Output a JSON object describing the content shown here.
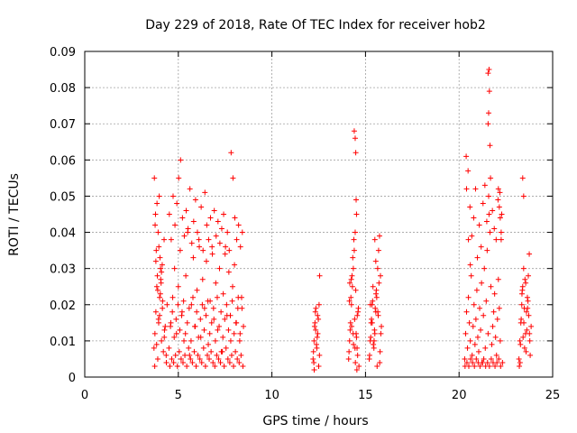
{
  "chart_data": {
    "type": "scatter",
    "title": "Day 229 of 2018, Rate Of TEC Index for receiver hob2",
    "xlabel": "GPS time / hours",
    "ylabel": "ROTI / TECUs",
    "xlim": [
      0,
      25
    ],
    "ylim": [
      0,
      0.09
    ],
    "xticks": [
      0,
      5,
      10,
      15,
      20,
      25
    ],
    "xtick_labels": [
      "0",
      "5",
      "10",
      "15",
      "20",
      "25"
    ],
    "yticks": [
      0,
      0.01,
      0.02,
      0.03,
      0.04,
      0.05,
      0.06,
      0.07,
      0.08,
      0.09
    ],
    "ytick_labels": [
      "0",
      "0.01",
      "0.02",
      "0.03",
      "0.04",
      "0.05",
      "0.06",
      "0.07",
      "0.08",
      "0.09"
    ],
    "grid": true,
    "marker": "+",
    "marker_color": "#ff0000",
    "series": [
      {
        "x": [
          3.7,
          3.75,
          3.8,
          3.85,
          3.9,
          3.95,
          4.0,
          4.05,
          4.1,
          4.2,
          4.3,
          4.4,
          3.72,
          3.78,
          3.82,
          3.88,
          3.92,
          3.98,
          4.02,
          4.08,
          4.15,
          4.25,
          4.35,
          3.74,
          3.84,
          3.94,
          4.04,
          4.14,
          4.24,
          3.76,
          3.86,
          3.96,
          4.06,
          4.16,
          4.26,
          4.36,
          3.8,
          3.9,
          4.0,
          4.1,
          4.5,
          4.6,
          4.7,
          4.8,
          4.9,
          5.0,
          5.1,
          5.2,
          5.3,
          5.4,
          5.5,
          5.6,
          5.7,
          5.8,
          5.9,
          6.0,
          6.1,
          6.2,
          6.3,
          6.4,
          6.5,
          6.6,
          6.7,
          6.8,
          6.9,
          7.0,
          7.1,
          7.2,
          7.3,
          7.4,
          7.5,
          7.6,
          7.7,
          7.8,
          7.9,
          8.0,
          8.1,
          8.2,
          8.3,
          8.4,
          4.55,
          4.65,
          4.75,
          4.85,
          4.95,
          5.05,
          5.15,
          5.25,
          5.35,
          5.45,
          5.55,
          5.65,
          5.75,
          5.85,
          5.95,
          6.05,
          6.15,
          6.25,
          6.35,
          6.45,
          6.55,
          6.65,
          6.75,
          6.85,
          6.95,
          7.05,
          7.15,
          7.25,
          7.35,
          7.45,
          7.55,
          7.65,
          7.75,
          7.85,
          7.95,
          8.05,
          8.15,
          8.25,
          8.35,
          8.45,
          4.52,
          4.62,
          4.72,
          4.82,
          4.92,
          5.02,
          5.12,
          5.22,
          5.32,
          5.42,
          5.52,
          5.62,
          5.72,
          5.82,
          5.92,
          6.02,
          6.12,
          6.22,
          6.32,
          6.42,
          6.52,
          6.62,
          6.72,
          6.82,
          6.92,
          7.02,
          7.12,
          7.22,
          7.32,
          7.42,
          7.52,
          7.62,
          7.72,
          7.82,
          7.92,
          8.02,
          8.12,
          8.22,
          8.32,
          8.42,
          4.58,
          4.68,
          4.78,
          4.88,
          4.98,
          5.08,
          5.18,
          5.28,
          5.38,
          5.48,
          5.58,
          5.68,
          5.78,
          5.88,
          5.98,
          6.08,
          6.18,
          6.28,
          6.38,
          6.48,
          6.58,
          6.68,
          6.78,
          6.88,
          6.98,
          7.08,
          7.18,
          7.28,
          7.38,
          7.48,
          7.58,
          7.68,
          7.78,
          7.88,
          7.98,
          8.08,
          8.18,
          8.28,
          8.38,
          8.48,
          12.2,
          12.25,
          12.3,
          12.35,
          12.4,
          12.45,
          12.5,
          12.55,
          12.22,
          12.28,
          12.32,
          12.38,
          12.42,
          12.48,
          12.52,
          12.24,
          12.34,
          12.44,
          12.54,
          12.26,
          14.1,
          14.15,
          14.2,
          14.25,
          14.3,
          14.35,
          14.4,
          14.45,
          14.5,
          14.55,
          14.6,
          14.65,
          14.12,
          14.18,
          14.22,
          14.28,
          14.32,
          14.38,
          14.42,
          14.48,
          14.52,
          14.58,
          14.62,
          14.16,
          14.26,
          14.36,
          14.46,
          14.56,
          14.14,
          14.24,
          14.34,
          14.44,
          14.54,
          14.4,
          14.45,
          14.48,
          14.5,
          14.52,
          15.2,
          15.25,
          15.3,
          15.35,
          15.4,
          15.45,
          15.5,
          15.55,
          15.6,
          15.65,
          15.7,
          15.75,
          15.8,
          15.85,
          15.22,
          15.28,
          15.32,
          15.38,
          15.42,
          15.48,
          15.52,
          15.58,
          15.62,
          15.68,
          15.72,
          15.78,
          15.82,
          15.26,
          15.36,
          15.46,
          15.56,
          15.66,
          15.76,
          15.5,
          15.55,
          20.3,
          20.35,
          20.4,
          20.45,
          20.5,
          20.55,
          20.6,
          20.65,
          20.7,
          20.75,
          20.8,
          20.85,
          20.9,
          20.95,
          21.0,
          21.05,
          21.1,
          21.15,
          21.2,
          21.25,
          21.3,
          21.35,
          21.4,
          21.45,
          21.5,
          21.55,
          21.6,
          21.65,
          21.7,
          21.75,
          21.8,
          21.85,
          21.9,
          21.95,
          22.0,
          22.05,
          22.1,
          22.15,
          22.2,
          22.25,
          20.32,
          20.42,
          20.52,
          20.62,
          20.72,
          20.82,
          20.92,
          21.02,
          21.12,
          21.22,
          21.32,
          21.42,
          21.52,
          21.62,
          21.72,
          21.82,
          21.92,
          22.02,
          22.12,
          22.22,
          22.32,
          20.38,
          20.48,
          20.58,
          20.68,
          20.78,
          20.88,
          20.98,
          21.08,
          21.18,
          21.28,
          21.38,
          21.48,
          21.58,
          21.68,
          21.78,
          21.88,
          21.98,
          22.08,
          22.18,
          22.28,
          20.4,
          20.5,
          20.6,
          21.55,
          21.6,
          21.62,
          21.58,
          21.55,
          21.65,
          22.1,
          22.15,
          22.2,
          22.25,
          23.2,
          23.25,
          23.3,
          23.35,
          23.4,
          23.45,
          23.5,
          23.55,
          23.6,
          23.65,
          23.7,
          23.75,
          23.8,
          23.85,
          23.22,
          23.28,
          23.32,
          23.38,
          23.42,
          23.48,
          23.52,
          23.58,
          23.62,
          23.68,
          23.72,
          23.78,
          23.26,
          23.36,
          23.46,
          23.56,
          23.66,
          23.76,
          23.4,
          23.45
        ],
        "y": [
          0.008,
          0.012,
          0.018,
          0.025,
          0.005,
          0.015,
          0.022,
          0.03,
          0.01,
          0.007,
          0.014,
          0.02,
          0.055,
          0.045,
          0.035,
          0.028,
          0.04,
          0.05,
          0.033,
          0.026,
          0.019,
          0.011,
          0.006,
          0.003,
          0.009,
          0.016,
          0.023,
          0.031,
          0.038,
          0.042,
          0.048,
          0.036,
          0.027,
          0.021,
          0.013,
          0.004,
          0.032,
          0.024,
          0.017,
          0.029,
          0.008,
          0.015,
          0.022,
          0.03,
          0.012,
          0.025,
          0.035,
          0.018,
          0.01,
          0.028,
          0.04,
          0.006,
          0.02,
          0.033,
          0.014,
          0.024,
          0.038,
          0.011,
          0.027,
          0.019,
          0.032,
          0.009,
          0.021,
          0.036,
          0.016,
          0.026,
          0.013,
          0.03,
          0.007,
          0.023,
          0.034,
          0.017,
          0.029,
          0.01,
          0.025,
          0.031,
          0.015,
          0.022,
          0.012,
          0.019,
          0.003,
          0.005,
          0.004,
          0.006,
          0.003,
          0.007,
          0.005,
          0.004,
          0.006,
          0.003,
          0.008,
          0.005,
          0.004,
          0.007,
          0.003,
          0.006,
          0.005,
          0.004,
          0.008,
          0.003,
          0.006,
          0.005,
          0.007,
          0.004,
          0.003,
          0.006,
          0.005,
          0.004,
          0.007,
          0.003,
          0.008,
          0.005,
          0.004,
          0.006,
          0.003,
          0.007,
          0.005,
          0.004,
          0.006,
          0.003,
          0.045,
          0.038,
          0.05,
          0.042,
          0.048,
          0.055,
          0.06,
          0.044,
          0.039,
          0.046,
          0.041,
          0.052,
          0.037,
          0.043,
          0.049,
          0.04,
          0.036,
          0.047,
          0.035,
          0.051,
          0.042,
          0.038,
          0.044,
          0.034,
          0.046,
          0.039,
          0.043,
          0.037,
          0.041,
          0.045,
          0.036,
          0.04,
          0.035,
          0.062,
          0.055,
          0.044,
          0.038,
          0.042,
          0.036,
          0.04,
          0.014,
          0.018,
          0.011,
          0.016,
          0.02,
          0.013,
          0.017,
          0.021,
          0.012,
          0.015,
          0.019,
          0.01,
          0.022,
          0.014,
          0.018,
          0.011,
          0.016,
          0.02,
          0.013,
          0.017,
          0.021,
          0.012,
          0.015,
          0.019,
          0.01,
          0.022,
          0.014,
          0.018,
          0.011,
          0.016,
          0.02,
          0.013,
          0.017,
          0.021,
          0.012,
          0.015,
          0.019,
          0.01,
          0.022,
          0.014,
          0.005,
          0.01,
          0.015,
          0.019,
          0.008,
          0.012,
          0.003,
          0.028,
          0.007,
          0.014,
          0.018,
          0.009,
          0.011,
          0.016,
          0.02,
          0.004,
          0.013,
          0.017,
          0.006,
          0.002,
          0.005,
          0.01,
          0.015,
          0.02,
          0.025,
          0.03,
          0.035,
          0.04,
          0.012,
          0.008,
          0.018,
          0.003,
          0.007,
          0.013,
          0.022,
          0.028,
          0.033,
          0.038,
          0.016,
          0.024,
          0.011,
          0.006,
          0.019,
          0.026,
          0.014,
          0.009,
          0.004,
          0.017,
          0.021,
          0.027,
          0.012,
          0.008,
          0.002,
          0.068,
          0.066,
          0.062,
          0.049,
          0.045,
          0.005,
          0.01,
          0.015,
          0.02,
          0.025,
          0.008,
          0.012,
          0.018,
          0.022,
          0.03,
          0.035,
          0.039,
          0.028,
          0.014,
          0.006,
          0.011,
          0.016,
          0.021,
          0.009,
          0.013,
          0.019,
          0.024,
          0.003,
          0.017,
          0.026,
          0.007,
          0.012,
          0.02,
          0.015,
          0.01,
          0.023,
          0.018,
          0.004,
          0.038,
          0.032,
          0.005,
          0.012,
          0.018,
          0.008,
          0.022,
          0.015,
          0.01,
          0.028,
          0.006,
          0.014,
          0.02,
          0.009,
          0.016,
          0.024,
          0.011,
          0.007,
          0.019,
          0.013,
          0.026,
          0.004,
          0.017,
          0.03,
          0.008,
          0.021,
          0.035,
          0.012,
          0.045,
          0.04,
          0.025,
          0.009,
          0.014,
          0.018,
          0.023,
          0.011,
          0.006,
          0.016,
          0.027,
          0.019,
          0.01,
          0.038,
          0.003,
          0.004,
          0.003,
          0.005,
          0.004,
          0.003,
          0.005,
          0.004,
          0.003,
          0.004,
          0.005,
          0.003,
          0.004,
          0.003,
          0.005,
          0.004,
          0.003,
          0.004,
          0.005,
          0.003,
          0.004,
          0.061,
          0.057,
          0.047,
          0.039,
          0.044,
          0.052,
          0.033,
          0.042,
          0.036,
          0.048,
          0.053,
          0.043,
          0.05,
          0.055,
          0.046,
          0.041,
          0.038,
          0.049,
          0.051,
          0.045,
          0.052,
          0.038,
          0.031,
          0.084,
          0.085,
          0.079,
          0.073,
          0.07,
          0.064,
          0.052,
          0.047,
          0.044,
          0.04,
          0.005,
          0.01,
          0.015,
          0.02,
          0.025,
          0.03,
          0.008,
          0.012,
          0.018,
          0.022,
          0.028,
          0.034,
          0.006,
          0.014,
          0.003,
          0.009,
          0.016,
          0.024,
          0.011,
          0.019,
          0.027,
          0.007,
          0.013,
          0.021,
          0.017,
          0.01,
          0.004,
          0.023,
          0.015,
          0.026,
          0.019,
          0.012,
          0.055,
          0.05
        ]
      }
    ]
  }
}
